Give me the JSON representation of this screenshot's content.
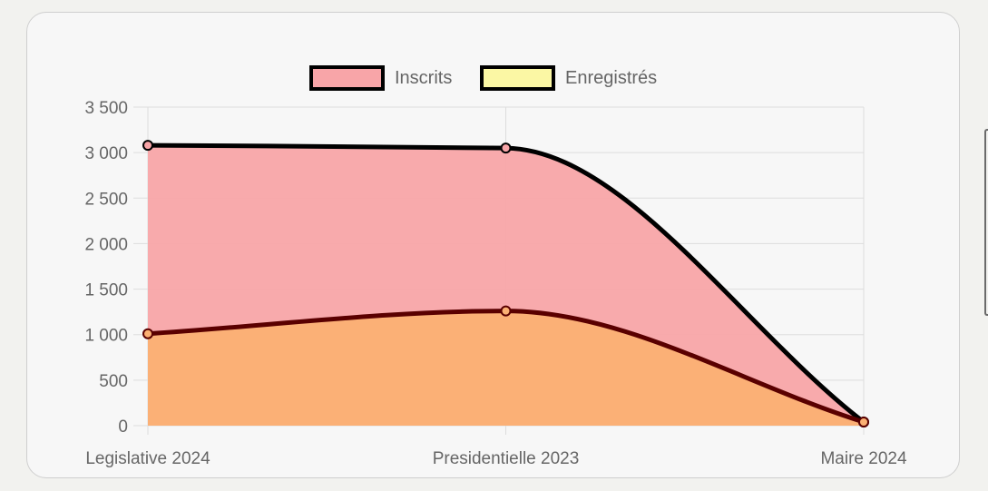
{
  "chart_data": {
    "type": "area",
    "categories": [
      "Legislative 2024",
      "Presidentielle 2023",
      "Maire 2024"
    ],
    "series": [
      {
        "name": "Inscrits",
        "values": [
          3080,
          3050,
          40
        ],
        "fill": "#f8a5a8",
        "stroke": "#000000"
      },
      {
        "name": "Enregistrés",
        "values": [
          1010,
          1260,
          40
        ],
        "fill": "#fbb073",
        "stroke": "#5a0000",
        "legend_fill": "#fbf7a4"
      }
    ],
    "ylim": [
      0,
      3500
    ],
    "y_ticks": [
      0,
      500,
      1000,
      1500,
      2000,
      2500,
      3000,
      3500
    ],
    "y_tick_labels": [
      "0",
      "500",
      "1 000",
      "1 500",
      "2 000",
      "2 500",
      "3 000",
      "3 500"
    ],
    "grid": true,
    "legend_position": "top",
    "curve": "smooth"
  }
}
